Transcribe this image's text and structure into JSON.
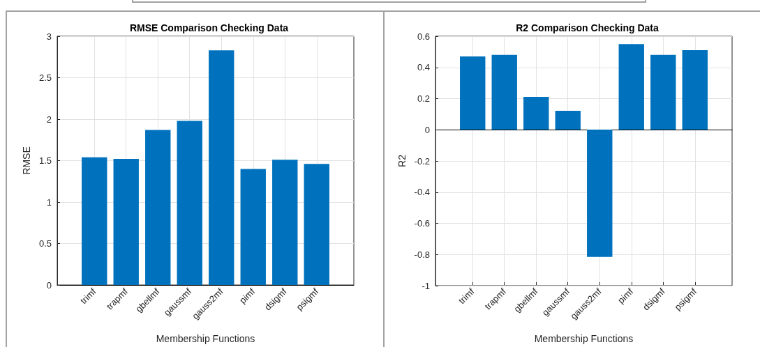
{
  "chart_data": [
    {
      "type": "bar",
      "title": "RMSE Comparison Checking Data",
      "xlabel": "Membership Functions",
      "ylabel": "RMSE",
      "categories": [
        "trimf",
        "trapmf",
        "gbellmf",
        "gaussmf",
        "gauss2mf",
        "pimf",
        "dsigmf",
        "psigmf"
      ],
      "values": [
        1.54,
        1.52,
        1.87,
        1.98,
        2.83,
        1.4,
        1.51,
        1.46
      ],
      "color": "#0072bd",
      "ylim": [
        0,
        3
      ],
      "yticks": [
        0,
        0.5,
        1,
        1.5,
        2,
        2.5,
        3
      ],
      "grid": true
    },
    {
      "type": "bar",
      "title": "R2 Comparison Checking Data",
      "xlabel": "Membership Functions",
      "ylabel": "R2",
      "categories": [
        "trimf",
        "trapmf",
        "gbellmf",
        "gaussmf",
        "gauss2mf",
        "pimf",
        "dsigmf",
        "psigmf"
      ],
      "values": [
        0.47,
        0.48,
        0.21,
        0.12,
        -0.82,
        0.55,
        0.48,
        0.51
      ],
      "color": "#0072bd",
      "ylim": [
        -1,
        0.6
      ],
      "yticks": [
        -1,
        -0.8,
        -0.6,
        -0.4,
        -0.2,
        0,
        0.2,
        0.4,
        0.6
      ],
      "grid": true
    }
  ]
}
